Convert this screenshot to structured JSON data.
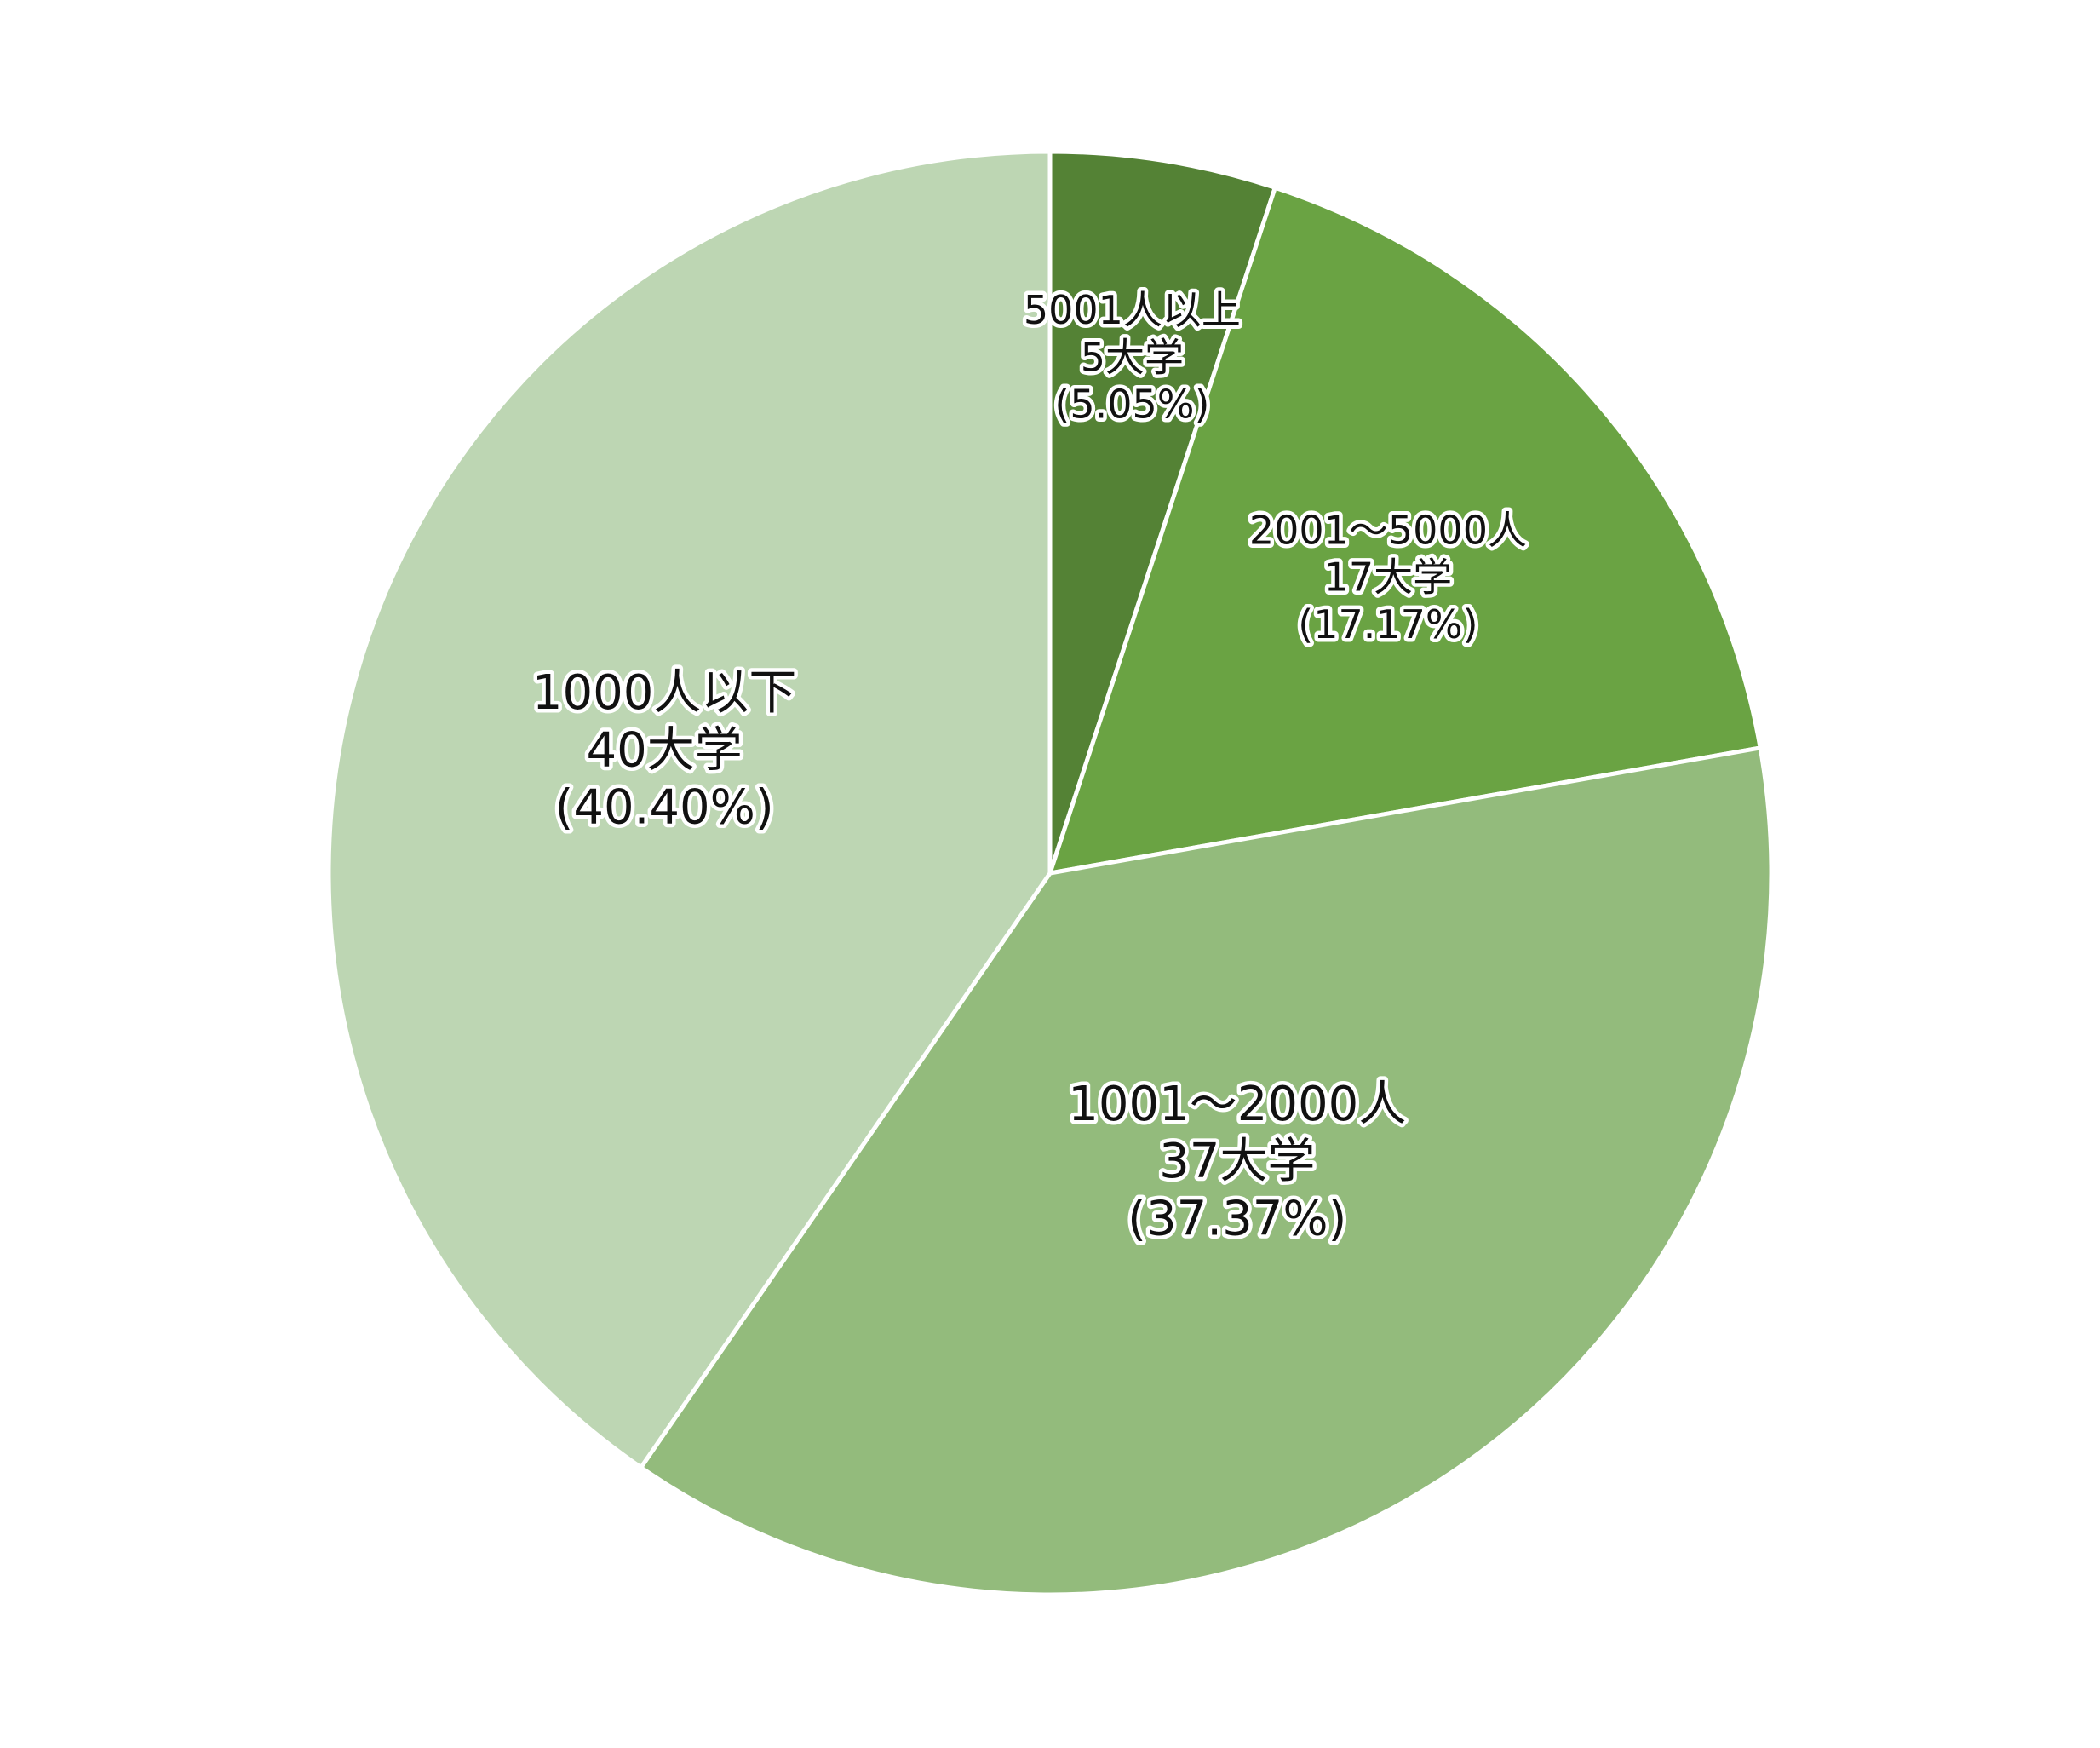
{
  "chart_data": {
    "type": "pie",
    "title": "",
    "legend": "none",
    "start_angle_deg": 0,
    "direction": "clockwise",
    "slices": [
      {
        "category": "5001人以上",
        "count_label": "5大学",
        "percent_label": "(5.05%)",
        "count": 5,
        "percent": 5.05,
        "color": "#548235"
      },
      {
        "category": "2001～5000人",
        "count_label": "17大学",
        "percent_label": "(17.17%)",
        "count": 17,
        "percent": 17.17,
        "color": "#6AA343"
      },
      {
        "category": "1001～2000人",
        "count_label": "37大学",
        "percent_label": "(37.37%)",
        "count": 37,
        "percent": 37.37,
        "color": "#93BB7C"
      },
      {
        "category": "1000人以下",
        "count_label": "40大学",
        "percent_label": "(40.40%)",
        "count": 40,
        "percent": 40.4,
        "color": "#BDD6B3"
      }
    ]
  }
}
